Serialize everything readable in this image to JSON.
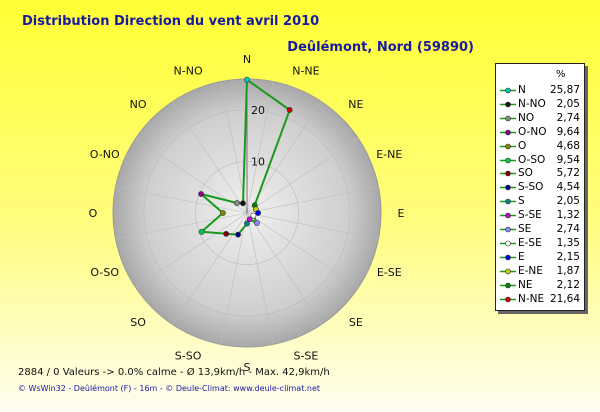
{
  "header": {
    "title": "Distribution Direction du vent   avril 2010",
    "location": "Deûlémont, Nord (59890)"
  },
  "legend": {
    "unit": "%"
  },
  "footer": {
    "stats": "2884 / 0 Valeurs  -> 0.0% calme   -  Ø 13,9km/h   -  Max. 42,9km/h",
    "credits": "© WsWin32  -  Deûlémont (F) - 16m   -  © Deule-Climat: www.deule-climat.net"
  },
  "chart_data": {
    "type": "radar",
    "directions": [
      "N",
      "N-NE",
      "NE",
      "E-NE",
      "E",
      "E-SE",
      "SE",
      "S-SE",
      "S",
      "S-SO",
      "SO",
      "O-SO",
      "O",
      "O-NO",
      "NO",
      "N-NO"
    ],
    "rings": [
      10,
      20
    ],
    "rmax": 26,
    "series": [
      {
        "name": "N",
        "value": 25.87,
        "legend_value": "25,87",
        "color": "#00c8c8"
      },
      {
        "name": "N-NO",
        "value": 2.05,
        "legend_value": "2,05",
        "color": "#111111"
      },
      {
        "name": "NO",
        "value": 2.74,
        "legend_value": "2,74",
        "color": "#888888"
      },
      {
        "name": "O-NO",
        "value": 9.64,
        "legend_value": "9,64",
        "color": "#880088"
      },
      {
        "name": "O",
        "value": 4.68,
        "legend_value": "4,68",
        "color": "#888800"
      },
      {
        "name": "O-SO",
        "value": 9.54,
        "legend_value": "9,54",
        "color": "#00cc44"
      },
      {
        "name": "SO",
        "value": 5.72,
        "legend_value": "5,72",
        "color": "#880000"
      },
      {
        "name": "S-SO",
        "value": 4.54,
        "legend_value": "4,54",
        "color": "#000088"
      },
      {
        "name": "S",
        "value": 2.05,
        "legend_value": "2,05",
        "color": "#008888"
      },
      {
        "name": "S-SE",
        "value": 1.32,
        "legend_value": "1,32",
        "color": "#cc00cc"
      },
      {
        "name": "SE",
        "value": 2.74,
        "legend_value": "2,74",
        "color": "#8888ff"
      },
      {
        "name": "E-SE",
        "value": 1.35,
        "legend_value": "1,35",
        "color": "#ffffff"
      },
      {
        "name": "E",
        "value": 2.15,
        "legend_value": "2,15",
        "color": "#0000ee"
      },
      {
        "name": "E-NE",
        "value": 1.87,
        "legend_value": "1,87",
        "color": "#cccc00"
      },
      {
        "name": "NE",
        "value": 2.12,
        "legend_value": "2,12",
        "color": "#008800"
      },
      {
        "name": "N-NE",
        "value": 21.64,
        "legend_value": "21,64",
        "color": "#cc0000"
      }
    ],
    "line_color": "#1a9a1a"
  }
}
